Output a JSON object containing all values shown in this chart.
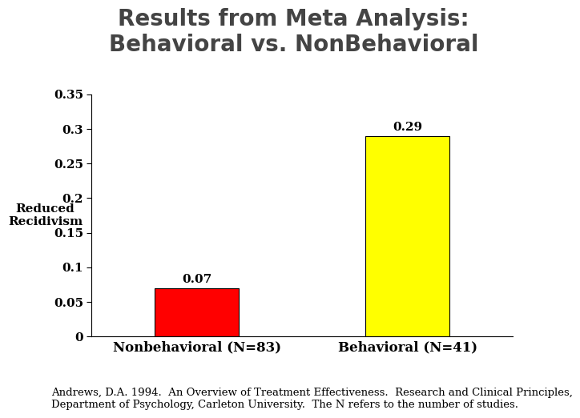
{
  "title_line1": "Results from Meta Analysis:",
  "title_line2": "Behavioral vs. NonBehavioral",
  "categories": [
    "Nonbehavioral (N=83)",
    "Behavioral (N=41)"
  ],
  "values": [
    0.07,
    0.29
  ],
  "bar_colors": [
    "#ff0000",
    "#ffff00"
  ],
  "bar_labels": [
    "0.07",
    "0.29"
  ],
  "ylabel_line1": "Reduced",
  "ylabel_line2": "Recidivism",
  "ylim": [
    0,
    0.35
  ],
  "yticks": [
    0,
    0.05,
    0.1,
    0.15,
    0.2,
    0.25,
    0.3,
    0.35
  ],
  "ytick_labels": [
    "0",
    "0.05",
    "0.1",
    "0.15",
    "0.2",
    "0.25",
    "0.3",
    "0.35"
  ],
  "footnote_line1": "Andrews, D.A. 1994.  An Overview of Treatment Effectiveness.  Research and Clinical Principles,",
  "footnote_line2": "Department of Psychology, Carleton University.  The N refers to the number of studies.",
  "background_color": "#ffffff",
  "title_color": "#444444",
  "title_fontsize": 20,
  "tick_label_fontsize": 11,
  "bar_label_fontsize": 11,
  "xlabel_fontsize": 12,
  "ylabel_fontsize": 11,
  "footnote_fontsize": 9.5
}
